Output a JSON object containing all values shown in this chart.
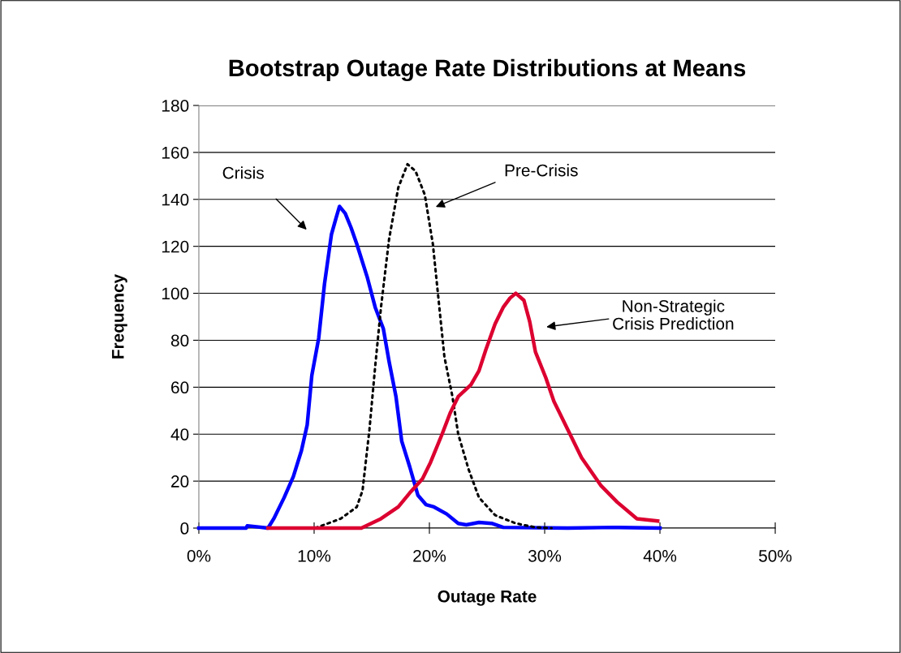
{
  "chart_data": {
    "type": "line",
    "title": "Bootstrap Outage Rate Distributions at Means",
    "xlabel": "Outage Rate",
    "ylabel": "Frequency",
    "xlim": [
      0,
      50
    ],
    "xticks": [
      {
        "value": 0,
        "label": "0%"
      },
      {
        "value": 10,
        "label": "10%"
      },
      {
        "value": 20,
        "label": "20%"
      },
      {
        "value": 30,
        "label": "30%"
      },
      {
        "value": 40,
        "label": "40%"
      },
      {
        "value": 50,
        "label": "50%"
      }
    ],
    "ylim": [
      0,
      180
    ],
    "yticks": [
      0,
      20,
      40,
      60,
      80,
      100,
      120,
      140,
      160,
      180
    ],
    "grid": "y",
    "legend": false,
    "series": [
      {
        "color": "#0000ff",
        "line_style": "solid",
        "x": [
          0,
          2.1,
          4.1,
          4.2,
          6,
          6.5,
          7.4,
          8.2,
          8.9,
          9.4,
          9.8,
          10.4,
          10.9,
          11.5,
          11.9,
          12.2,
          12.7,
          13.2,
          13.7,
          14.6,
          15.3,
          16,
          16.5,
          17.1,
          17.6,
          18.3,
          19,
          19.7,
          20.4,
          21.5,
          22.5,
          23.2,
          24.3,
          25.4,
          26.4,
          32,
          36,
          40
        ],
        "values": [
          0,
          0,
          0,
          1,
          0,
          4,
          13,
          22,
          33,
          44,
          65,
          81,
          104,
          125,
          132,
          137,
          134,
          128,
          121,
          107,
          94,
          85,
          71,
          56,
          37,
          26,
          14,
          10,
          9,
          6,
          2,
          1.4,
          2.4,
          2,
          0.3,
          0,
          0.3,
          0
        ]
      },
      {
        "color": "#000000",
        "line_style": "dotted",
        "x": [
          10.1,
          12.3,
          13.7,
          14.2,
          14.8,
          15.3,
          15.8,
          16.5,
          17.3,
          18.1,
          18.8,
          19.6,
          20.3,
          20.8,
          21.3,
          22,
          22.5,
          23.4,
          24.3,
          25.7,
          27.5,
          29.2,
          30.6
        ],
        "values": [
          0,
          4,
          9,
          16,
          42,
          69,
          94,
          123,
          145,
          155,
          152,
          142,
          121,
          97,
          73,
          56,
          40,
          25,
          13,
          5.5,
          2,
          0.3,
          0
        ]
      },
      {
        "color": "#dc0030",
        "line_style": "solid",
        "x": [
          6,
          14.1,
          15.8,
          17.3,
          18.3,
          19.4,
          20.1,
          21.1,
          21.8,
          22.5,
          23.6,
          24.3,
          24.9,
          25.7,
          26.4,
          27,
          27.5,
          28.2,
          28.7,
          29.2,
          30.1,
          30.8,
          32,
          33.2,
          34.9,
          36.3,
          38,
          39.8
        ],
        "values": [
          0,
          0,
          4,
          9,
          15,
          21,
          28,
          40,
          49,
          56,
          61,
          67,
          76,
          87,
          94,
          98,
          100,
          97,
          88,
          75,
          64,
          54,
          42,
          30,
          18,
          11,
          4,
          3
        ]
      }
    ],
    "annotations": [
      "Crisis",
      "Pre-Crisis",
      "Non-Strategic\nCrisis Prediction"
    ]
  }
}
